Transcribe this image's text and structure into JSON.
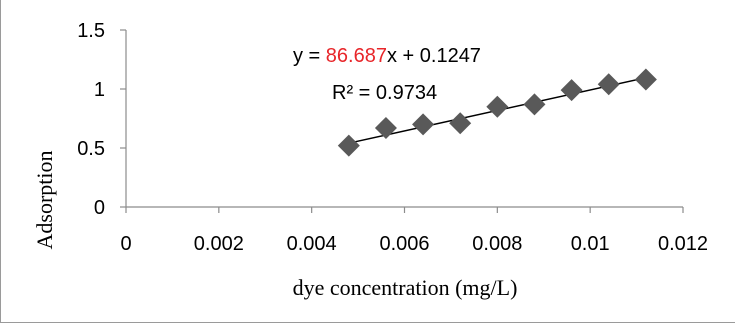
{
  "chart_data": {
    "type": "scatter",
    "title": "",
    "xlabel": "dye concentration (mg/L)",
    "ylabel": "Adsorption",
    "xlim": [
      0,
      0.012
    ],
    "ylim": [
      0,
      1.5
    ],
    "x_ticks": [
      "0",
      "0.002",
      "0.004",
      "0.006",
      "0.008",
      "0.01",
      "0.012"
    ],
    "y_ticks": [
      "0",
      "0.5",
      "1",
      "1.5"
    ],
    "grid": false,
    "legend": "none",
    "marker": "diamond",
    "marker_color": "#595959",
    "points": [
      {
        "x": 0.0048,
        "y": 0.52
      },
      {
        "x": 0.0056,
        "y": 0.67
      },
      {
        "x": 0.0064,
        "y": 0.7
      },
      {
        "x": 0.0072,
        "y": 0.71
      },
      {
        "x": 0.008,
        "y": 0.85
      },
      {
        "x": 0.0088,
        "y": 0.87
      },
      {
        "x": 0.0096,
        "y": 0.99
      },
      {
        "x": 0.0104,
        "y": 1.04
      },
      {
        "x": 0.0112,
        "y": 1.08
      }
    ],
    "trendline": {
      "slope": 86.687,
      "intercept": 0.1247,
      "x_range": [
        0.0048,
        0.0112
      ],
      "color": "#000000",
      "equation": {
        "prefix": "y = ",
        "slope_text": "86.687",
        "suffix": "x + 0.1247",
        "slope_color": "#e8262a"
      },
      "r_squared_label": "R² = 0.9734"
    }
  }
}
